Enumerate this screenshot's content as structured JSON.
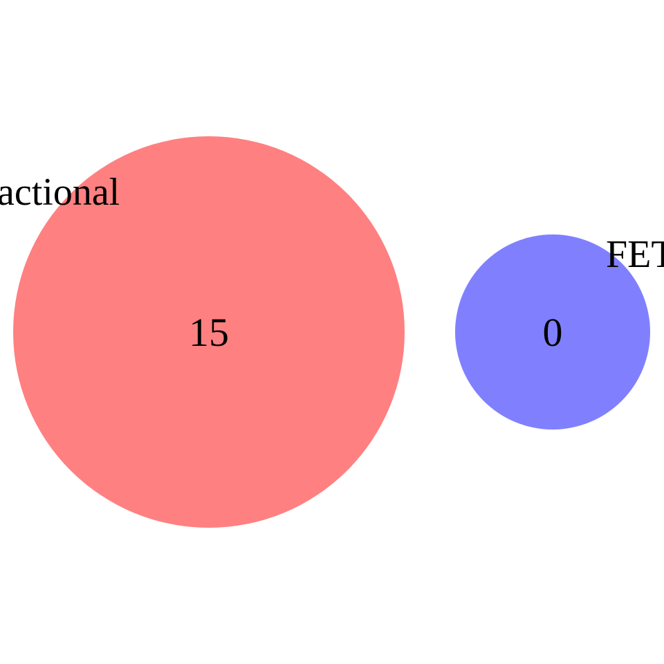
{
  "diagram": {
    "type": "venn",
    "sets": [
      {
        "key": "set-a",
        "label": "actional",
        "count": "15",
        "color": "#ff8080"
      },
      {
        "key": "set-b",
        "label": "FET",
        "count": "0",
        "color": "#8080ff"
      }
    ]
  }
}
